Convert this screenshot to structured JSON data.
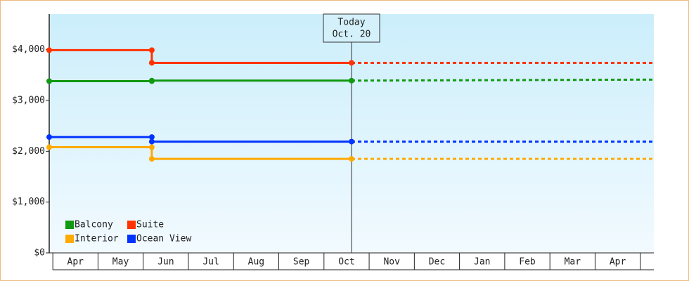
{
  "chart_data": {
    "type": "step-line",
    "ylim": [
      0,
      4700
    ],
    "yticks": [
      {
        "value": 0,
        "label": "$0"
      },
      {
        "value": 1000,
        "label": "$1,000"
      },
      {
        "value": 2000,
        "label": "$2,000"
      },
      {
        "value": 3000,
        "label": "$3,000"
      },
      {
        "value": 4000,
        "label": "$4,000"
      }
    ],
    "xlim": [
      -0.08,
      13.3
    ],
    "categories": [
      "Apr",
      "May",
      "Jun",
      "Jul",
      "Aug",
      "Sep",
      "Oct",
      "Nov",
      "Dec",
      "Jan",
      "Feb",
      "Mar",
      "Apr"
    ],
    "x": [
      -0.08,
      2.19,
      2.19,
      6.61
    ],
    "projection_x": [
      6.61,
      13.3
    ],
    "annotation": {
      "lines": [
        "Today",
        "Oct. 20"
      ],
      "x": 6.61
    },
    "series": [
      {
        "name": "Balcony",
        "color": "#119911",
        "values": [
          3380,
          3380,
          3390,
          3390
        ],
        "projection": [
          3390,
          3410
        ]
      },
      {
        "name": "Suite",
        "color": "#ff3300",
        "values": [
          3990,
          3990,
          3740,
          3740
        ],
        "projection": [
          3740,
          3740
        ]
      },
      {
        "name": "Interior",
        "color": "#ffaa00",
        "values": [
          2080,
          2080,
          1850,
          1850
        ],
        "projection": [
          1850,
          1850
        ]
      },
      {
        "name": "Ocean View",
        "color": "#0033ff",
        "values": [
          2280,
          2280,
          2190,
          2190
        ],
        "projection": [
          2190,
          2190
        ]
      }
    ]
  }
}
